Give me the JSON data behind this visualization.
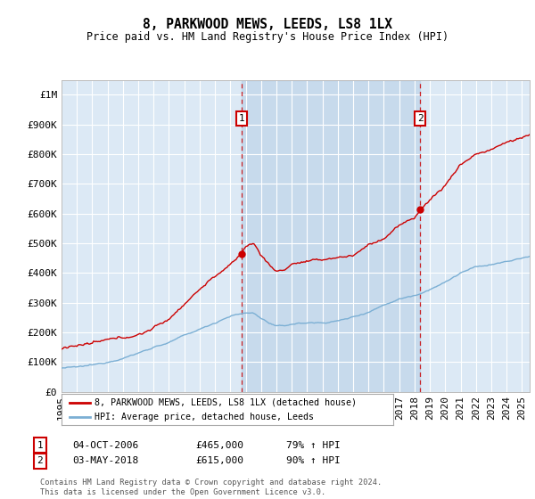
{
  "title": "8, PARKWOOD MEWS, LEEDS, LS8 1LX",
  "subtitle": "Price paid vs. HM Land Registry's House Price Index (HPI)",
  "legend_red": "8, PARKWOOD MEWS, LEEDS, LS8 1LX (detached house)",
  "legend_blue": "HPI: Average price, detached house, Leeds",
  "annotation1_label": "1",
  "annotation1_date": "04-OCT-2006",
  "annotation1_price": "£465,000",
  "annotation1_hpi": "79% ↑ HPI",
  "annotation1_year": 2006.75,
  "annotation1_value": 465000,
  "annotation2_label": "2",
  "annotation2_date": "03-MAY-2018",
  "annotation2_price": "£615,000",
  "annotation2_hpi": "90% ↑ HPI",
  "annotation2_year": 2018.37,
  "annotation2_value": 615000,
  "footer": "Contains HM Land Registry data © Crown copyright and database right 2024.\nThis data is licensed under the Open Government Licence v3.0.",
  "bg_color": "#dce9f5",
  "shade_color": "#c8d8ee",
  "red_color": "#cc0000",
  "blue_color": "#7bafd4",
  "ylim": [
    0,
    1050000
  ],
  "xlim_start": 1995.0,
  "xlim_end": 2025.5
}
